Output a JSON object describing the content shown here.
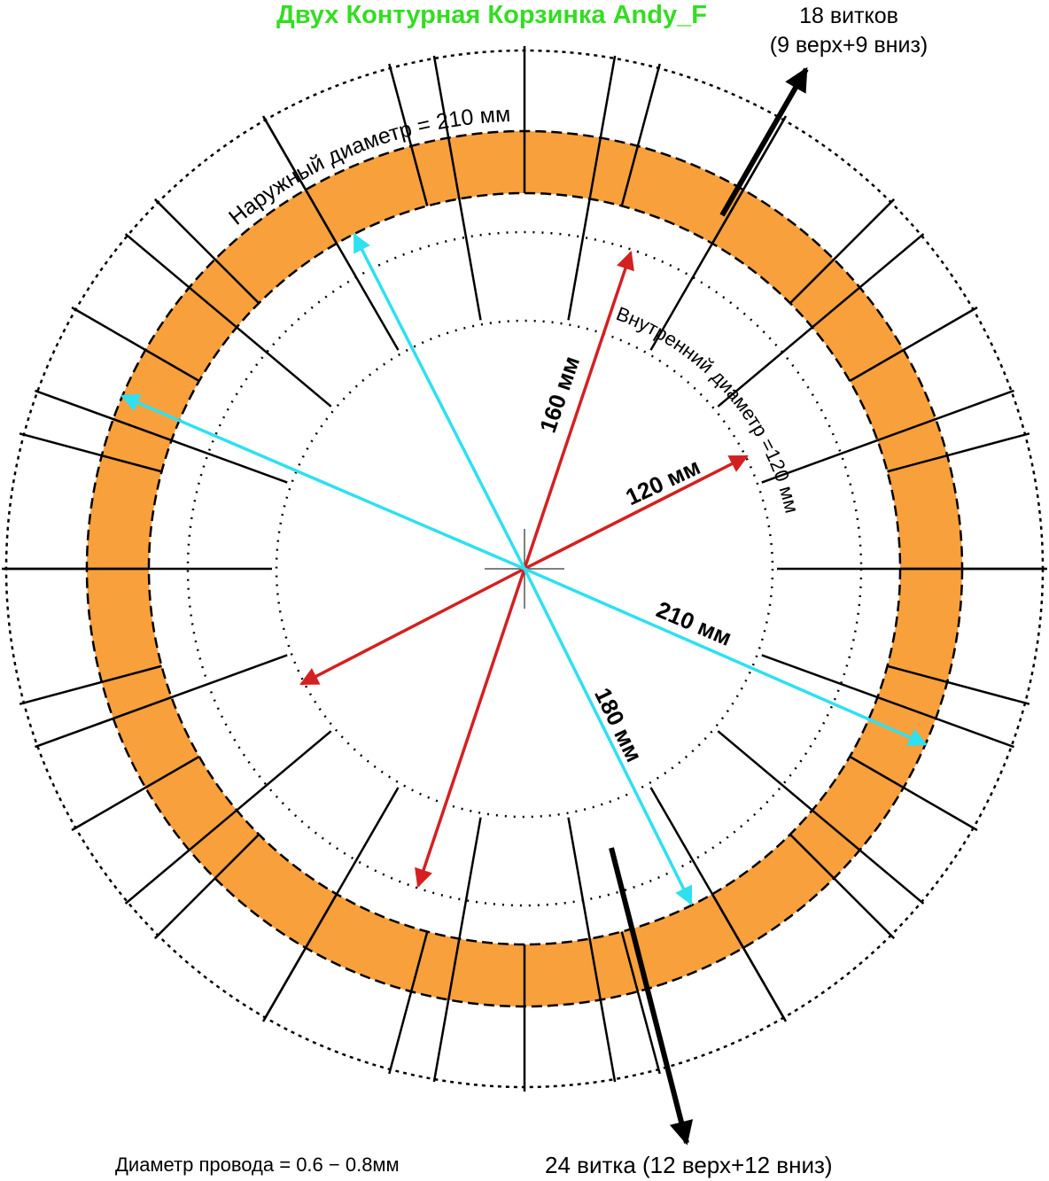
{
  "title": "Двух Контурная Корзинка Andy_F",
  "annotations": {
    "top_turns": [
      "18 витков",
      "(9 верх+9 вниз)"
    ],
    "bottom_turns": "24 витка (12 верх+12 вниз)",
    "wire": "Диаметр провода = 0.6 − 0.8мм",
    "outer_diameter": "Наружный диаметр = 210 мм",
    "inner_diameter": "Внутренний диаметр =120 мм"
  },
  "dimensions": [
    "160 мм",
    "120 мм",
    "210 мм",
    "180 мм"
  ]
}
